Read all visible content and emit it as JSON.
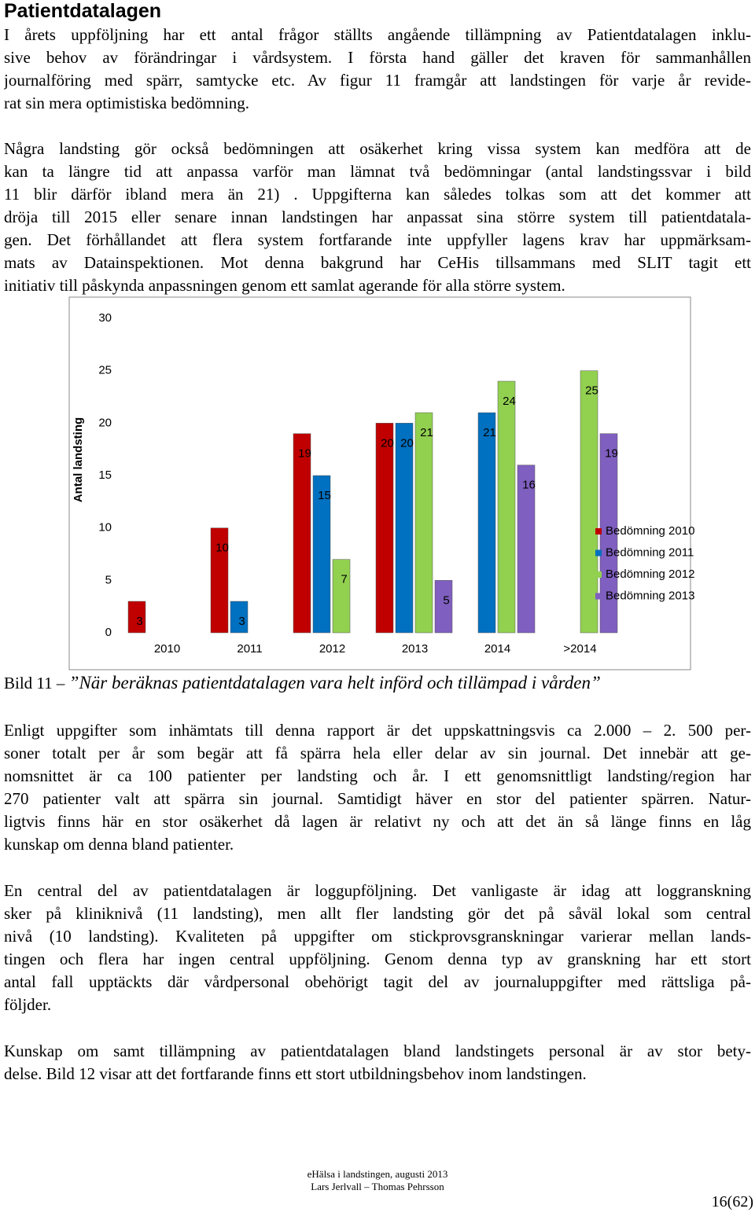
{
  "heading": "Patientdatalagen",
  "paragraphs": [
    [
      "I årets uppföljning har ett antal frågor ställts angående tillämpning av Patientdatalagen inklu-",
      "sive behov av förändringar i vårdsystem. I första hand gäller det kraven för sammanhållen",
      "journalföring med spärr, samtycke etc. Av figur 11 framgår att landstingen för varje år revide-",
      "rat sin mera optimistiska bedömning."
    ],
    [
      "Några landsting gör också bedömningen att osäkerhet kring vissa system kan medföra att de",
      "kan ta längre tid att anpassa varför man lämnat två bedömningar (antal landstingssvar i bild",
      "11 blir därför ibland mera än 21) . Uppgifterna kan således tolkas som att det kommer att",
      "dröja till 2015 eller senare innan landstingen har anpassat sina större system till patientdatala-",
      "gen. Det förhållandet att flera system fortfarande inte uppfyller lagens krav har uppmärksam-",
      "mats av Datainspektionen. Mot denna bakgrund har CeHis tillsammans med SLIT tagit ett",
      "initiativ till påskynda anpassningen genom ett samlat agerande för alla större system."
    ],
    [
      "Enligt uppgifter som inhämtats till denna rapport är det uppskattningsvis ca 2.000 – 2. 500 per-",
      "soner totalt per år som begär att få spärra hela eller delar av sin journal. Det innebär att ge-",
      "nomsnittet är ca 100 patienter per landsting och år. I ett genomsnittligt landsting/region har",
      "270 patienter valt att spärra sin journal. Samtidigt häver en stor del patienter spärren. Natur-",
      "ligtvis finns här en stor osäkerhet då lagen är relativt ny och att det än så länge finns en låg",
      "kunskap om denna bland patienter."
    ],
    [
      "En central del av patientdatalagen är loggupföljning. Det vanligaste är idag att loggranskning",
      "sker på kliniknivå (11 landsting), men allt fler landsting gör det på såväl lokal som central",
      "nivå (10 landsting). Kvaliteten på uppgifter om stickprovsgranskningar varierar mellan lands-",
      "tingen och flera har ingen central uppföljning. Genom denna typ av granskning har ett stort",
      "antal fall upptäckts där vårdpersonal obehörigt tagit del av journaluppgifter med rättsliga på-",
      "följder."
    ],
    [
      "Kunskap om samt tillämpning av patientdatalagen bland landstingets personal är av stor bety-",
      "delse. Bild 12 visar att det fortfarande finns ett stort utbildningsbehov inom landstingen."
    ]
  ],
  "chart_data": {
    "type": "bar",
    "y_label": "Antal landsting",
    "categories": [
      "2010",
      "2011",
      "2012",
      "2013",
      "2014",
      ">2014"
    ],
    "series": [
      {
        "name": "Bedömning 2010",
        "color": "#c00000",
        "values": [
          3,
          10,
          19,
          20,
          null,
          null
        ]
      },
      {
        "name": "Bedömning 2011",
        "color": "#0070c0",
        "values": [
          null,
          3,
          15,
          20,
          21,
          null
        ]
      },
      {
        "name": "Bedömning 2012",
        "color": "#92d050",
        "values": [
          null,
          null,
          7,
          21,
          24,
          25
        ]
      },
      {
        "name": "Bedömning 2013",
        "color": "#7f5fbf",
        "values": [
          null,
          null,
          null,
          5,
          16,
          19
        ]
      }
    ],
    "ylim": [
      0,
      30
    ],
    "yticks": [
      0,
      5,
      10,
      15,
      20,
      25,
      30
    ],
    "grid": false,
    "legend": "right"
  },
  "caption": {
    "label": "Bild 11 –",
    "title": "”När beräknas patientdatalagen vara helt införd och tillämpad i vården”"
  },
  "footer": {
    "line1": "eHälsa i landstingen, augusti 2013",
    "line2": "Lars Jerlvall – Thomas Pehrsson",
    "page": "16(62)"
  }
}
